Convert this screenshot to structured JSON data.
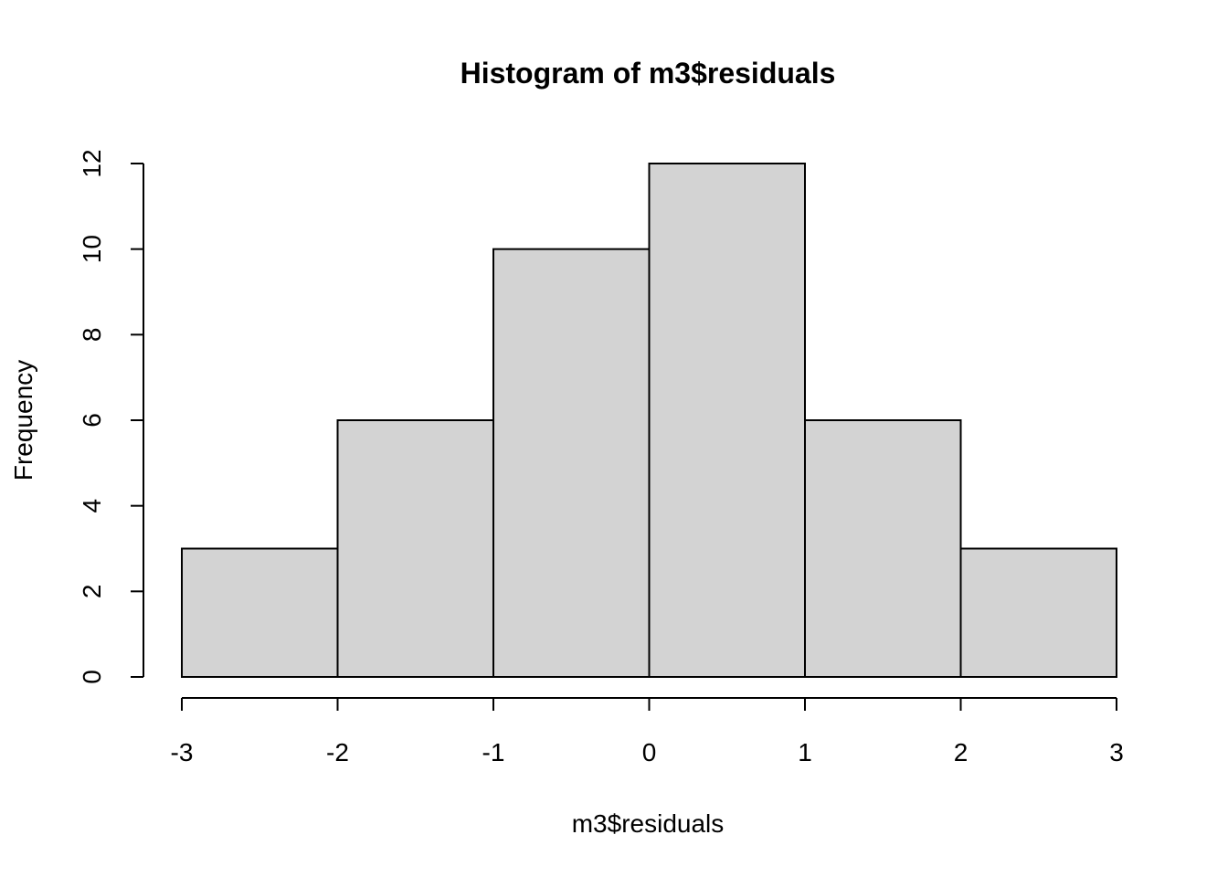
{
  "chart_data": {
    "type": "bar",
    "title": "Histogram of m3$residuals",
    "xlabel": "m3$residuals",
    "ylabel": "Frequency",
    "bins": [
      {
        "x0": -3,
        "x1": -2,
        "count": 3
      },
      {
        "x0": -2,
        "x1": -1,
        "count": 6
      },
      {
        "x0": -1,
        "x1": 0,
        "count": 10
      },
      {
        "x0": 0,
        "x1": 1,
        "count": 12
      },
      {
        "x0": 1,
        "x1": 2,
        "count": 6
      },
      {
        "x0": 2,
        "x1": 3,
        "count": 3
      }
    ],
    "xlim": [
      -3,
      3
    ],
    "ylim": [
      0,
      12
    ],
    "x_ticks": [
      -3,
      -2,
      -1,
      0,
      1,
      2,
      3
    ],
    "x_tick_labels": [
      "-3",
      "-2",
      "-1",
      "0",
      "1",
      "2",
      "3"
    ],
    "y_ticks": [
      0,
      2,
      4,
      6,
      8,
      10,
      12
    ],
    "y_tick_labels": [
      "0",
      "2",
      "4",
      "6",
      "8",
      "10",
      "12"
    ],
    "grid": false,
    "bar_fill": "#d3d3d3",
    "bar_stroke": "#000000"
  }
}
